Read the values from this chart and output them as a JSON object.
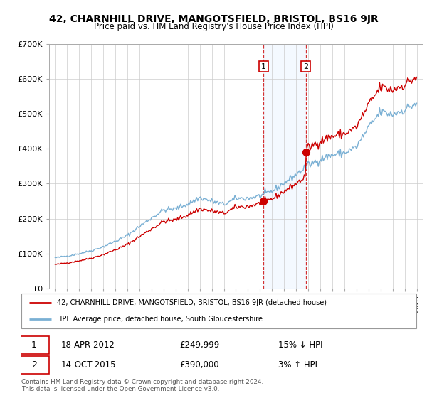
{
  "title": "42, CHARNHILL DRIVE, MANGOTSFIELD, BRISTOL, BS16 9JR",
  "subtitle": "Price paid vs. HM Land Registry's House Price Index (HPI)",
  "sale1_date": "18-APR-2012",
  "sale1_price": 249999,
  "sale1_label": "15% ↓ HPI",
  "sale2_date": "14-OCT-2015",
  "sale2_price": 390000,
  "sale2_label": "3% ↑ HPI",
  "legend_line1": "42, CHARNHILL DRIVE, MANGOTSFIELD, BRISTOL, BS16 9JR (detached house)",
  "legend_line2": "HPI: Average price, detached house, South Gloucestershire",
  "footnote1": "Contains HM Land Registry data © Crown copyright and database right 2024.",
  "footnote2": "This data is licensed under the Open Government Licence v3.0.",
  "hpi_color": "#7ab0d4",
  "price_color": "#cc0000",
  "highlight_color": "#ddeeff",
  "sale1_x": 2012.3,
  "sale2_x": 2015.8,
  "ylim_min": 0,
  "ylim_max": 700000,
  "xlim_min": 1994.5,
  "xlim_max": 2025.5
}
